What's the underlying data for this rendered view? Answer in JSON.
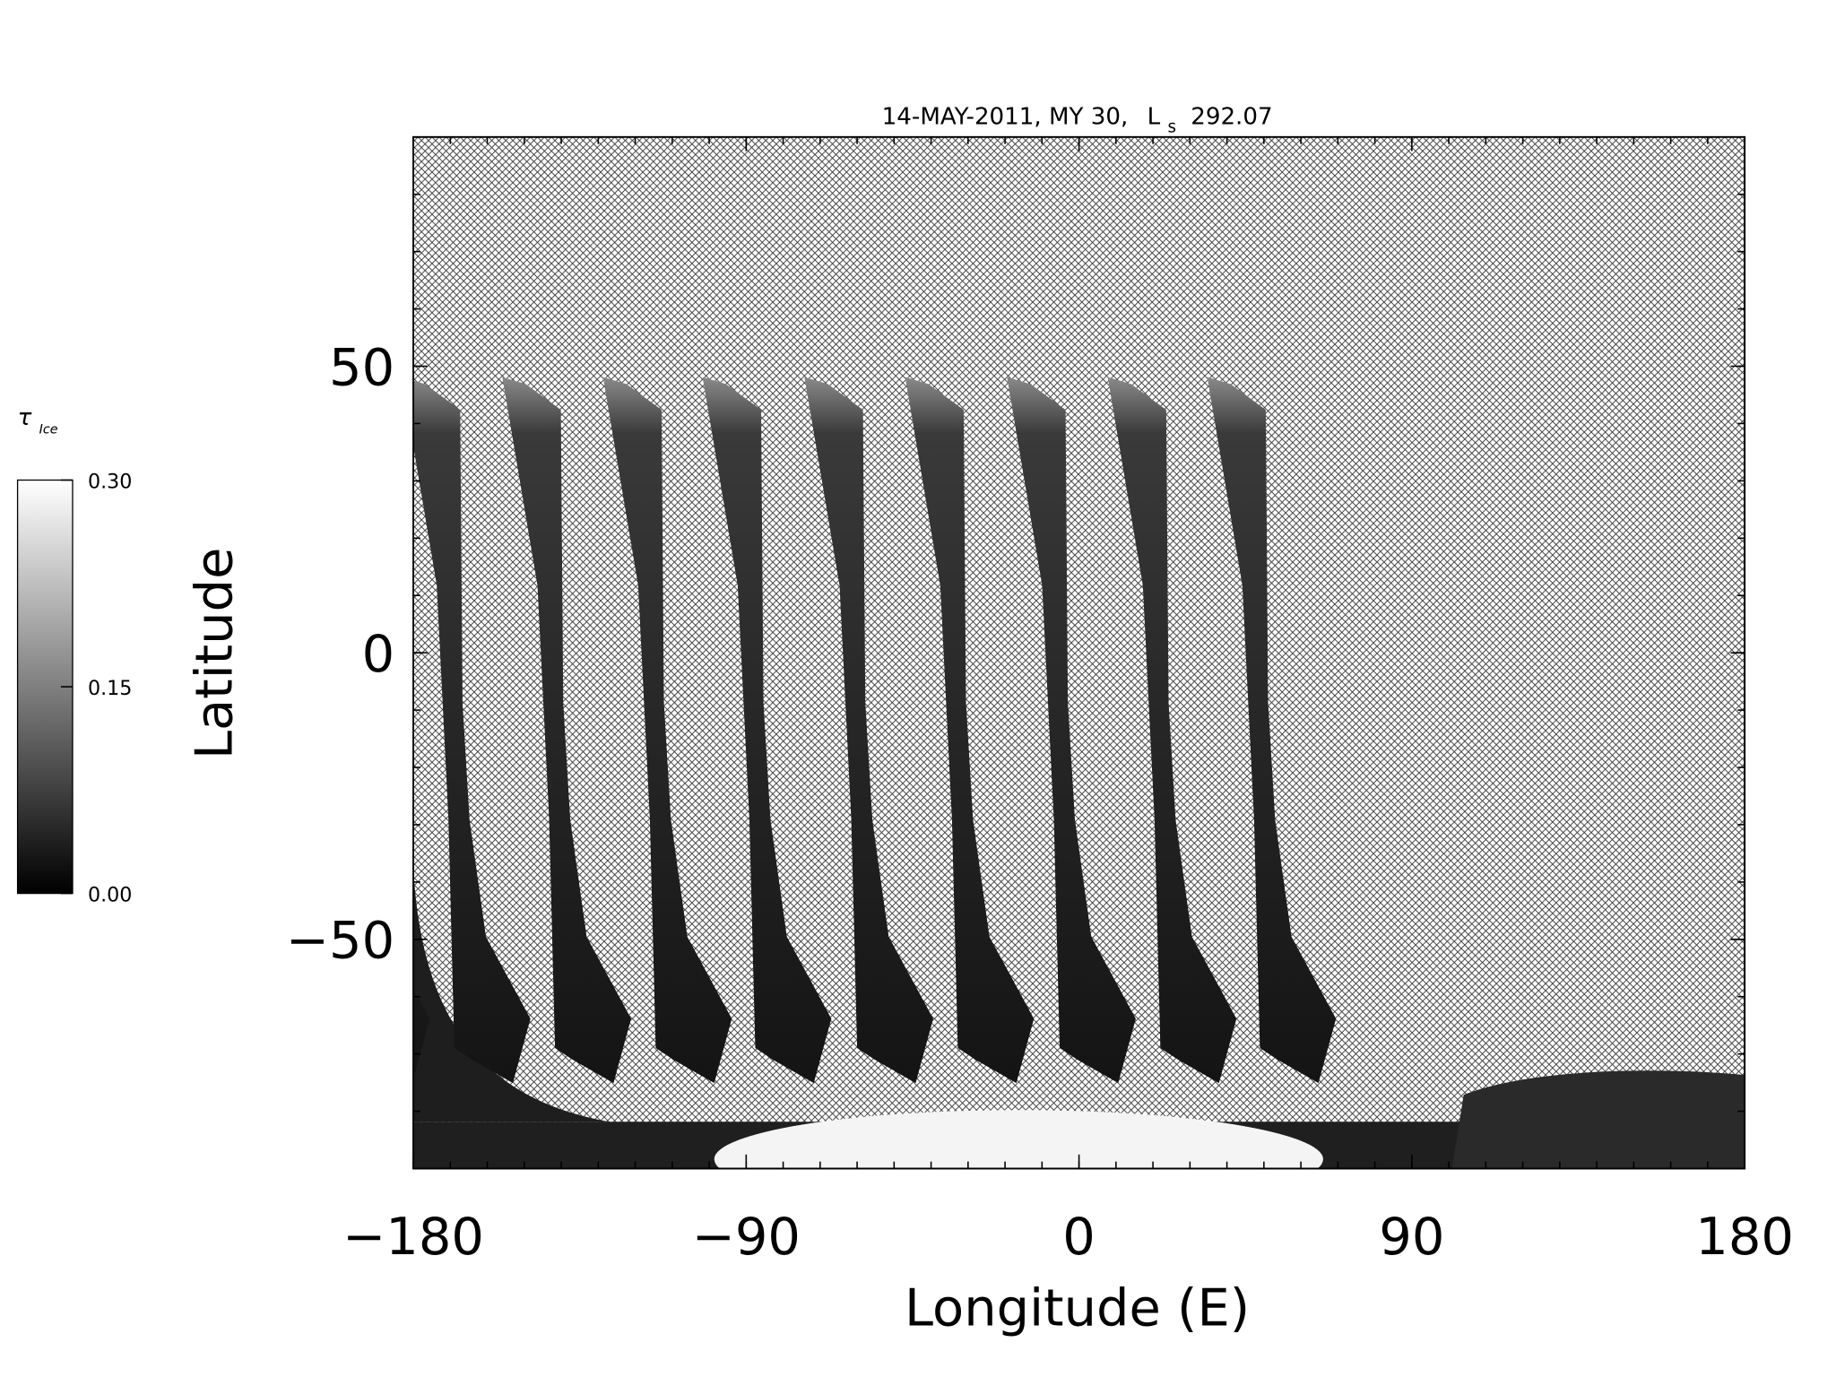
{
  "chart_data": {
    "type": "map",
    "title": "14-MAY-2011, MY 30,",
    "title_ls": "L",
    "title_ls_sub": "s",
    "title_ls_value": 292.07,
    "x_label": "Longitude (E)",
    "y_label": "Latitude",
    "xlim": [
      -180,
      180
    ],
    "ylim": [
      -90,
      90
    ],
    "xticks": [
      {
        "value": -180,
        "label": "−180"
      },
      {
        "value": -90,
        "label": "−90"
      },
      0,
      90,
      180
    ],
    "yticks": [
      {
        "value": -50,
        "label": "−50"
      },
      0,
      50
    ],
    "colorbar": {
      "label": "τ",
      "label_sub": "Ice",
      "lim": [
        0,
        0.3
      ],
      "ticks": [
        {
          "value": 0,
          "label": "0.00"
        },
        {
          "value": 0.15,
          "label": "0.15"
        },
        {
          "value": 0.3,
          "label": "0.30"
        }
      ],
      "colors": [
        "#000000",
        "#ffffff"
      ]
    }
  }
}
